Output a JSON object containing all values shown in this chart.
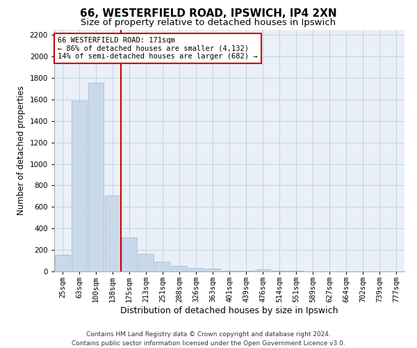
{
  "title_line1": "66, WESTERFIELD ROAD, IPSWICH, IP4 2XN",
  "title_line2": "Size of property relative to detached houses in Ipswich",
  "xlabel": "Distribution of detached houses by size in Ipswich",
  "ylabel": "Number of detached properties",
  "bar_color": "#c9d9ea",
  "bar_edgecolor": "#9ab5cc",
  "grid_color": "#c5cfe0",
  "background_color": "#eaf0f8",
  "vline_color": "#cc0000",
  "vline_x": 3.5,
  "annotation_text": "66 WESTERFIELD ROAD: 171sqm\n← 86% of detached houses are smaller (4,132)\n14% of semi-detached houses are larger (682) →",
  "annotation_box_color": "#ffffff",
  "annotation_box_edgecolor": "#cc0000",
  "categories": [
    "25sqm",
    "63sqm",
    "100sqm",
    "138sqm",
    "175sqm",
    "213sqm",
    "251sqm",
    "288sqm",
    "326sqm",
    "363sqm",
    "401sqm",
    "439sqm",
    "476sqm",
    "514sqm",
    "551sqm",
    "589sqm",
    "627sqm",
    "664sqm",
    "702sqm",
    "739sqm",
    "777sqm"
  ],
  "values": [
    155,
    1585,
    1755,
    705,
    315,
    160,
    90,
    55,
    35,
    25,
    5,
    5,
    20,
    5,
    5,
    0,
    0,
    0,
    0,
    0,
    0
  ],
  "ylim": [
    0,
    2250
  ],
  "yticks": [
    0,
    200,
    400,
    600,
    800,
    1000,
    1200,
    1400,
    1600,
    1800,
    2000,
    2200
  ],
  "footer_line1": "Contains HM Land Registry data © Crown copyright and database right 2024.",
  "footer_line2": "Contains public sector information licensed under the Open Government Licence v3.0.",
  "title_fontsize": 11,
  "subtitle_fontsize": 9.5,
  "xlabel_fontsize": 9,
  "ylabel_fontsize": 8.5,
  "tick_fontsize": 7.5,
  "footer_fontsize": 6.5,
  "ann_fontsize": 7.5
}
